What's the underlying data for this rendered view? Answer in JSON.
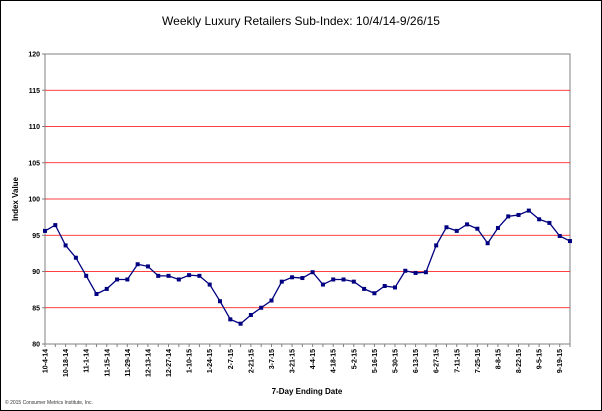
{
  "chart_data": {
    "type": "line",
    "title": "Weekly Luxury Retailers Sub-Index: 10/4/14-9/26/15",
    "xlabel": "7-Day Ending Date",
    "ylabel": "Index Value",
    "ylim": [
      80,
      120
    ],
    "yticks": [
      "80",
      "85",
      "90",
      "95",
      "100",
      "105",
      "110",
      "115",
      "120"
    ],
    "x": [
      "10-4-14",
      "10-11-14",
      "10-18-14",
      "10-25-14",
      "11-1-14",
      "11-8-14",
      "11-15-14",
      "11-22-14",
      "11-29-14",
      "12-6-14",
      "12-13-14",
      "12-20-14",
      "12-27-14",
      "1-3-15",
      "1-10-15",
      "1-17-15",
      "1-24-15",
      "1-31-15",
      "2-7-15",
      "2-14-15",
      "2-21-15",
      "2-28-15",
      "3-7-15",
      "3-14-15",
      "3-21-15",
      "3-28-15",
      "4-4-15",
      "4-11-15",
      "4-18-15",
      "4-25-15",
      "5-2-15",
      "5-9-15",
      "5-16-15",
      "5-23-15",
      "5-30-15",
      "6-6-15",
      "6-13-15",
      "6-20-15",
      "6-27-15",
      "7-4-15",
      "7-11-15",
      "7-18-15",
      "7-25-15",
      "8-1-15",
      "8-8-15",
      "8-15-15",
      "8-22-15",
      "8-29-15",
      "9-5-15",
      "9-12-15",
      "9-19-15",
      "9-26-15"
    ],
    "xtick_labels": [
      "10-4-14",
      "10-18-14",
      "11-1-14",
      "11-15-14",
      "11-29-14",
      "12-13-14",
      "12-27-14",
      "1-10-15",
      "1-24-15",
      "2-7-15",
      "2-21-15",
      "3-7-15",
      "3-21-15",
      "4-4-15",
      "4-18-15",
      "5-2-15",
      "5-16-15",
      "5-30-15",
      "6-13-15",
      "6-27-15",
      "7-11-15",
      "7-25-15",
      "8-8-15",
      "8-22-15",
      "9-5-15",
      "9-19-15"
    ],
    "series": [
      {
        "values": [
          95.6,
          96.4,
          93.6,
          91.9,
          89.4,
          86.9,
          87.6,
          88.9,
          88.9,
          91.0,
          90.7,
          89.4,
          89.4,
          88.9,
          89.5,
          89.4,
          88.2,
          85.9,
          83.4,
          82.8,
          84.0,
          85.0,
          86.0,
          88.6,
          89.2,
          89.1,
          89.9,
          88.2,
          88.9,
          88.9,
          88.6,
          87.6,
          87.0,
          88.0,
          87.8,
          90.1,
          89.8,
          89.9,
          93.6,
          96.1,
          95.6,
          96.5,
          95.9,
          93.9,
          96.0,
          97.6,
          97.8,
          98.4,
          97.2,
          96.7,
          94.9,
          94.2
        ],
        "color": "#000080"
      }
    ],
    "grid": true,
    "gridline_color": "#ff0000",
    "background_color": "#ffffff",
    "legend": "none"
  },
  "footer": {
    "copyright": "© 2015 Consumer Metrics Institute, Inc."
  }
}
